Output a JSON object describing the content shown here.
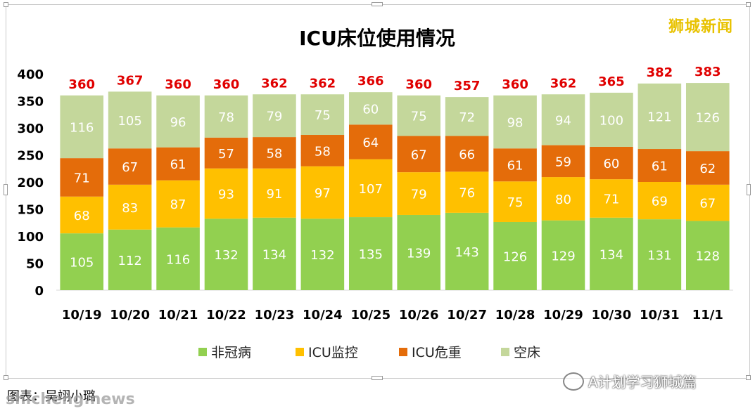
{
  "watermark": "狮城新闻",
  "caption": "图表：吴翊小璐",
  "site_mark": "shicheng.news",
  "account_label": "A计划学习狮城篇",
  "colors": {
    "non_covid": "#92d050",
    "icu_monitor": "#ffc000",
    "icu_critical": "#e46c0a",
    "empty": "#c4d79b",
    "total_label": "#e00000",
    "axis_text": "#000000"
  },
  "chart_data": {
    "type": "bar",
    "stacked": true,
    "title": "ICU床位使用情况",
    "categories": [
      "10/19",
      "10/20",
      "10/21",
      "10/22",
      "10/23",
      "10/24",
      "10/25",
      "10/26",
      "10/27",
      "10/28",
      "10/29",
      "10/30",
      "10/31",
      "11/1"
    ],
    "series": [
      {
        "name": "非冠病",
        "values": [
          105,
          112,
          116,
          132,
          134,
          132,
          135,
          139,
          143,
          126,
          129,
          134,
          131,
          128
        ]
      },
      {
        "name": "ICU监控",
        "values": [
          68,
          83,
          87,
          93,
          91,
          97,
          107,
          79,
          76,
          75,
          80,
          71,
          69,
          67
        ]
      },
      {
        "name": "ICU危重",
        "values": [
          71,
          67,
          61,
          57,
          58,
          58,
          64,
          67,
          66,
          61,
          59,
          60,
          61,
          62
        ]
      },
      {
        "name": "空床",
        "values": [
          116,
          105,
          96,
          78,
          79,
          75,
          60,
          75,
          72,
          98,
          94,
          100,
          121,
          126
        ]
      }
    ],
    "totals": [
      360,
      367,
      360,
      360,
      362,
      362,
      366,
      360,
      357,
      360,
      362,
      365,
      382,
      383
    ],
    "ylim": [
      0,
      400
    ],
    "yticks": [
      0,
      50,
      100,
      150,
      200,
      250,
      300,
      350,
      400
    ],
    "legend_position": "bottom",
    "grid": false,
    "xlabel": "",
    "ylabel": ""
  }
}
